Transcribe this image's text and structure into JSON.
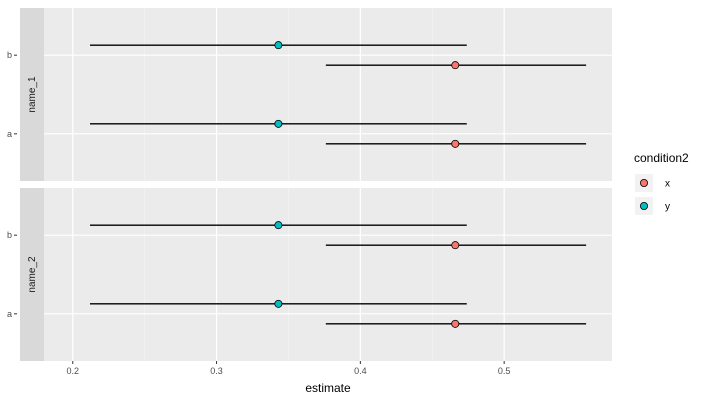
{
  "chart_data": {
    "type": "scatter",
    "subtype": "faceted point-range (forest) plot",
    "xlabel": "estimate",
    "ylabel": "",
    "xlim": [
      0.18,
      0.575
    ],
    "x_ticks": [
      0.2,
      0.3,
      0.4,
      0.5
    ],
    "x_tick_labels": [
      "0.2",
      "0.3",
      "0.4",
      "0.5"
    ],
    "y_categories": [
      "a",
      "b"
    ],
    "grid": true,
    "facet_strip_position": "left",
    "legend": {
      "title": "condition2",
      "position": "right",
      "entries": [
        {
          "label": "x",
          "color": "#F8766D"
        },
        {
          "label": "y",
          "color": "#00BFC4"
        }
      ]
    },
    "facets": [
      {
        "name": "name_1",
        "rows": [
          {
            "category": "b",
            "condition": "y",
            "estimate": 0.343,
            "lower": 0.212,
            "upper": 0.474
          },
          {
            "category": "b",
            "condition": "x",
            "estimate": 0.466,
            "lower": 0.376,
            "upper": 0.557
          },
          {
            "category": "a",
            "condition": "y",
            "estimate": 0.343,
            "lower": 0.212,
            "upper": 0.474
          },
          {
            "category": "a",
            "condition": "x",
            "estimate": 0.466,
            "lower": 0.376,
            "upper": 0.557
          }
        ]
      },
      {
        "name": "name_2",
        "rows": [
          {
            "category": "b",
            "condition": "y",
            "estimate": 0.343,
            "lower": 0.212,
            "upper": 0.474
          },
          {
            "category": "b",
            "condition": "x",
            "estimate": 0.466,
            "lower": 0.376,
            "upper": 0.557
          },
          {
            "category": "a",
            "condition": "y",
            "estimate": 0.343,
            "lower": 0.212,
            "upper": 0.474
          },
          {
            "category": "a",
            "condition": "x",
            "estimate": 0.466,
            "lower": 0.376,
            "upper": 0.557
          }
        ]
      }
    ]
  }
}
